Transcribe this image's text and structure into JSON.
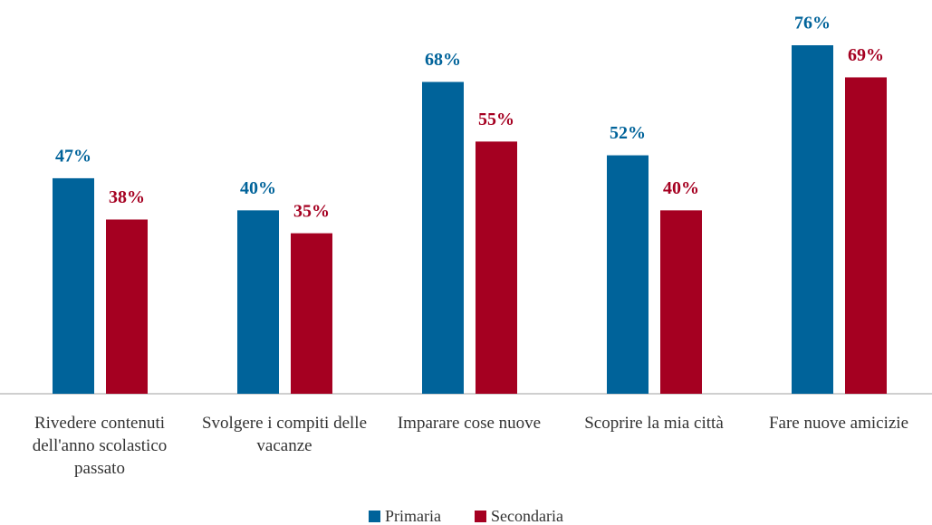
{
  "chart_data": {
    "type": "bar",
    "categories": [
      "Rivedere contenuti dell'anno scolastico passato",
      "Svolgere i compiti delle vacanze",
      "Imparare cose nuove",
      "Scoprire la mia città",
      "Fare nuove amicizie"
    ],
    "series": [
      {
        "name": "Primaria",
        "color": "#00639a",
        "values": [
          47,
          40,
          68,
          52,
          76
        ],
        "value_labels": [
          "47%",
          "40%",
          "68%",
          "52%",
          "76%"
        ]
      },
      {
        "name": "Secondaria",
        "color": "#a50021",
        "values": [
          38,
          35,
          55,
          40,
          69
        ],
        "value_labels": [
          "38%",
          "35%",
          "55%",
          "40%",
          "69%"
        ]
      }
    ],
    "legend": "bottom"
  }
}
